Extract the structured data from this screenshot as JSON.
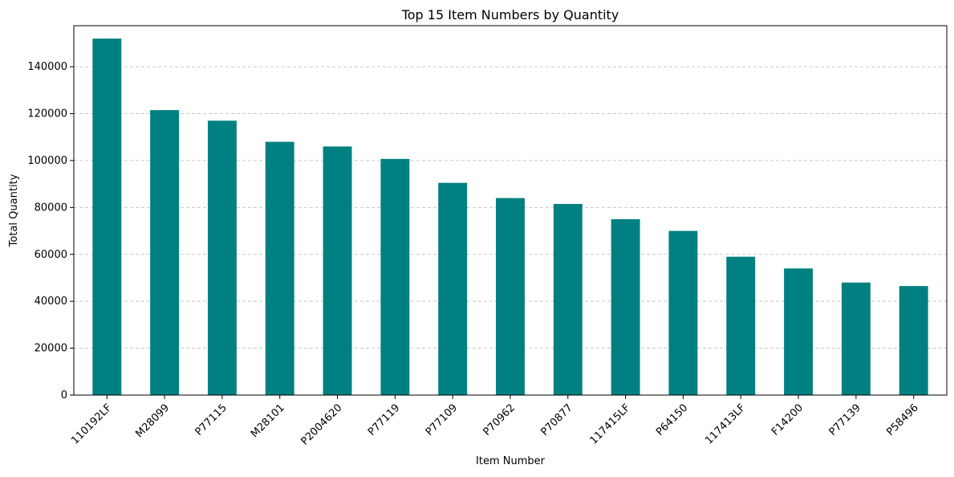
{
  "chart_data": {
    "type": "bar",
    "title": "Top 15 Item Numbers by Quantity",
    "xlabel": "Item Number",
    "ylabel": "Total Quantity",
    "categories": [
      "110192LF",
      "M28099",
      "P77115",
      "M28101",
      "P2004620",
      "P77119",
      "P77109",
      "P70962",
      "P70877",
      "117415LF",
      "P64150",
      "117413LF",
      "F14200",
      "P77139",
      "P58496"
    ],
    "values": [
      152000,
      121500,
      117000,
      108000,
      106000,
      100700,
      90500,
      84000,
      81500,
      75000,
      70000,
      59000,
      54000,
      48000,
      46500
    ],
    "ylim": [
      0,
      157500
    ],
    "yticks": [
      0,
      20000,
      40000,
      60000,
      80000,
      100000,
      120000,
      140000
    ],
    "grid": "y-dashed",
    "colors": {
      "bar": "#008080",
      "grid": "#c8c8c8",
      "axis": "#000000"
    }
  }
}
